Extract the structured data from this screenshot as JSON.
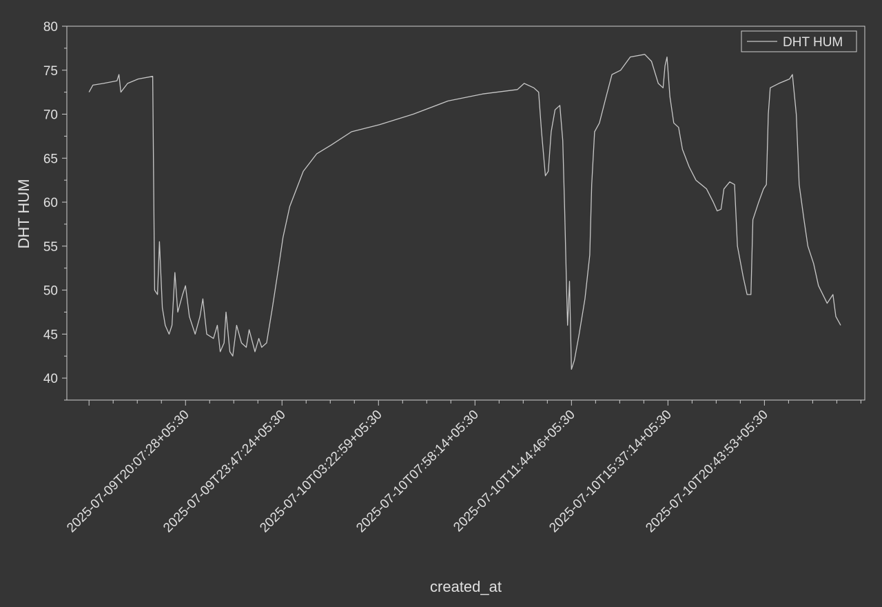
{
  "chart_data": {
    "type": "line",
    "x_label": "created_at",
    "y_label": "DHT HUM",
    "x": [
      0,
      4,
      15,
      29,
      31,
      33,
      40,
      51,
      66,
      68,
      71,
      73,
      76,
      79,
      83,
      86,
      89,
      92,
      97,
      100,
      104,
      110,
      115,
      118,
      122,
      129,
      133,
      136,
      140,
      142,
      146,
      149,
      153,
      158,
      163,
      166,
      172,
      176,
      179,
      184,
      190,
      197,
      201,
      208,
      215,
      222,
      236,
      251,
      272,
      301,
      336,
      372,
      408,
      444,
      451,
      461,
      466,
      469,
      473,
      476,
      479,
      483,
      488,
      491,
      493,
      495,
      496,
      498,
      500,
      503,
      508,
      514,
      519,
      521,
      524,
      529,
      536,
      542,
      551,
      561,
      576,
      583,
      590,
      595,
      597,
      599,
      602,
      606,
      611,
      615,
      622,
      629,
      640,
      647,
      651,
      655,
      658,
      664,
      669,
      672,
      678,
      682,
      686,
      688,
      694,
      699,
      702,
      704,
      706,
      715,
      726,
      729,
      733,
      736,
      741,
      745,
      751,
      756,
      765,
      771,
      774,
      779
    ],
    "series": [
      {
        "name": "DHT HUM",
        "color": "#c8c8c8",
        "values": [
          72.5,
          73.3,
          73.5,
          73.8,
          74.5,
          72.5,
          73.5,
          74,
          74.3,
          50,
          49.5,
          55.5,
          48,
          46,
          45,
          46,
          52,
          47.5,
          49.5,
          50.5,
          47,
          45,
          47,
          49,
          45,
          44.5,
          46,
          43,
          44,
          47.5,
          43,
          42.5,
          46,
          44,
          43.5,
          45.5,
          43,
          44.5,
          43.5,
          44,
          48,
          53,
          56,
          59.5,
          61.5,
          63.5,
          65.5,
          66.5,
          68,
          68.8,
          70,
          71.5,
          72.3,
          72.8,
          73.5,
          73,
          72.5,
          68,
          63,
          63.5,
          68,
          70.5,
          71,
          67,
          59,
          50,
          46,
          51,
          41,
          42,
          45,
          49,
          54,
          62,
          68,
          69,
          72,
          74.5,
          75,
          76.5,
          76.8,
          76,
          73.5,
          73,
          75.5,
          76.5,
          72,
          69,
          68.5,
          66,
          64,
          62.5,
          61.5,
          60,
          59,
          59.2,
          61.5,
          62.3,
          62,
          55,
          51.5,
          49.5,
          49.5,
          58,
          60,
          61.5,
          62,
          70,
          73,
          73.5,
          74,
          74.5,
          70,
          62,
          58,
          55,
          53,
          50.5,
          48.5,
          49.5,
          47,
          46
        ]
      }
    ],
    "xlim": [
      -23,
      804
    ],
    "xticks": [
      {
        "value": 100,
        "label": "2025-07-09T20:07:28+05:30"
      },
      {
        "value": 200,
        "label": "2025-07-09T23:47:24+05:30"
      },
      {
        "value": 300,
        "label": "2025-07-10T03:22:59+05:30"
      },
      {
        "value": 400,
        "label": "2025-07-10T07:58:14+05:30"
      },
      {
        "value": 500,
        "label": "2025-07-10T11:44:46+05:30"
      },
      {
        "value": 600,
        "label": "2025-07-10T15:37:14+05:30"
      },
      {
        "value": 700,
        "label": "2025-07-10T20:43:53+05:30"
      }
    ],
    "ylim": [
      37.5,
      80
    ],
    "yticks": [
      40,
      45,
      50,
      55,
      60,
      65,
      70,
      75,
      80
    ],
    "legend": "top-right"
  }
}
